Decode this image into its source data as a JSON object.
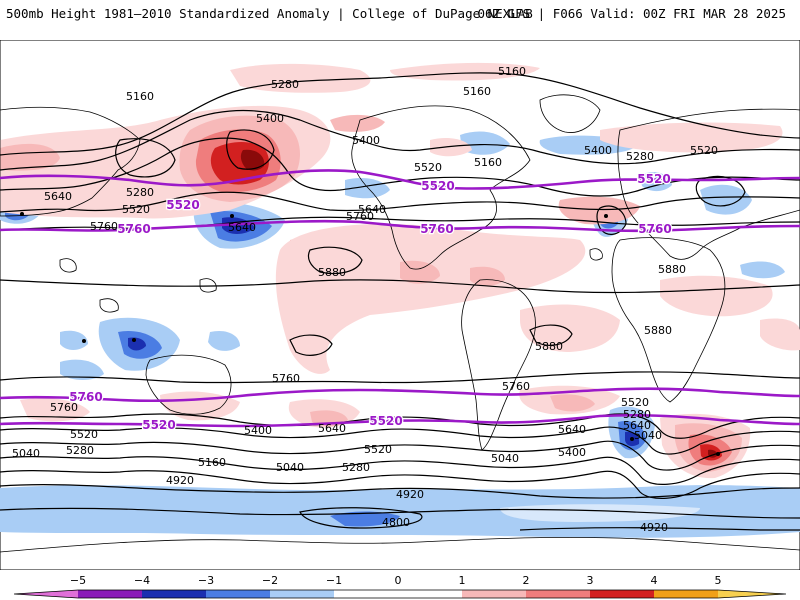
{
  "header": {
    "left": "500mb Height 1981–2010 Standardized Anomaly | College of DuPage NEXLAB",
    "right": "06Z GFS | F066 Valid: 00Z FRI MAR 28 2025"
  },
  "colors": {
    "neg5": "#e070d8",
    "neg4": "#8a1bb8",
    "neg3": "#1b2fb0",
    "neg2": "#4b7de3",
    "neg1": "#a9cdf5",
    "neg05": "#d8e8fb",
    "pos05": "#fbd8d8",
    "pos1": "#f7b9b9",
    "pos2": "#ef7d7d",
    "pos3": "#d22020",
    "pos4": "#8a0a0a",
    "pos5": "#f0a018",
    "pos6": "#f7d050",
    "highlight_contour": "#9b19c8",
    "contour": "#000000",
    "coast": "#000000"
  },
  "contour_labels": {
    "l5160a": "5160",
    "l5160b": "5160",
    "l5160c": "5160",
    "l5160d": "5160",
    "l5280a": "5280",
    "l5280b": "5280",
    "l5280c": "5280",
    "l5280d": "5280",
    "l5400a": "5400",
    "l5400b": "5400",
    "l5400c": "5400",
    "l5400d": "5400",
    "l5520a": "5520",
    "l5520b": "5520",
    "l5520c": "5520",
    "l5520d": "5520",
    "l5640a": "5640",
    "l5640b": "5640",
    "l5640c": "5640",
    "l5640d": "5640",
    "l5760a": "5760",
    "l5760b": "5760",
    "l5760c": "5760",
    "l5760d": "5760",
    "l5880a": "5880",
    "l5880b": "5880",
    "l5880c": "5880",
    "l5880d": "5880",
    "l5040a": "5040",
    "l5040b": "5040",
    "l5040c": "5040",
    "l5040d": "5040",
    "l4920a": "4920",
    "l4920b": "4920",
    "l4920c": "4920",
    "l4800": "4800",
    "s5400": "5400",
    "s5280": "5280",
    "s5520b": "5520",
    "s5640b": "5640",
    "s5160b": "5160",
    "s5760b": "5760",
    "n5520x": "5520",
    "n5640x": "5640",
    "n5280x": "5280"
  },
  "highlight_labels": {
    "h5520a": "5520",
    "h5520b": "5520",
    "h5520c": "5520",
    "h5760a": "5760",
    "h5760b": "5760",
    "h5760c": "5760",
    "h5760d": "5760",
    "h5520d": "5520",
    "h5520e": "5520"
  },
  "colorbar": {
    "ticks": [
      "−5",
      "−4",
      "−3",
      "−2",
      "−1",
      "0",
      "1",
      "2",
      "3",
      "4",
      "5"
    ]
  }
}
